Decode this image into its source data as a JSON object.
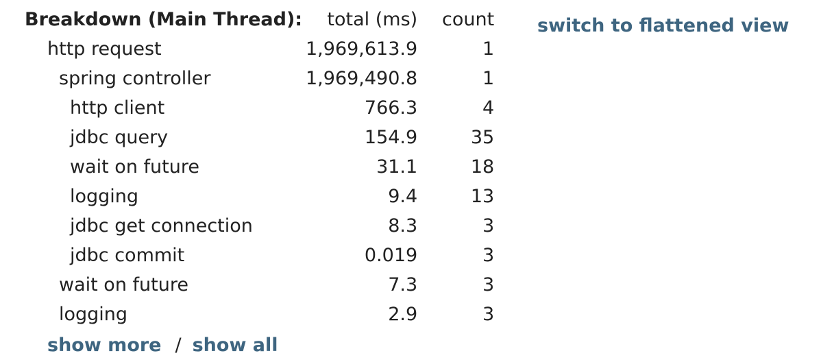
{
  "breakdown": {
    "title": "Breakdown (Main Thread):",
    "col_total": "total (ms)",
    "col_count": "count",
    "rows": [
      {
        "name": "http request",
        "total": "1,969,613.9",
        "count": "1"
      },
      {
        "name": "spring controller",
        "total": "1,969,490.8",
        "count": "1"
      },
      {
        "name": "http client",
        "total": "766.3",
        "count": "4"
      },
      {
        "name": "jdbc query",
        "total": "154.9",
        "count": "35"
      },
      {
        "name": "wait on future",
        "total": "31.1",
        "count": "18"
      },
      {
        "name": "logging",
        "total": "9.4",
        "count": "13"
      },
      {
        "name": "jdbc get connection",
        "total": "8.3",
        "count": "3"
      },
      {
        "name": "jdbc commit",
        "total": "0.019",
        "count": "3"
      },
      {
        "name": "wait on future",
        "total": "7.3",
        "count": "3"
      },
      {
        "name": "logging",
        "total": "2.9",
        "count": "3"
      }
    ]
  },
  "links": {
    "show_more": "show more",
    "separator": "/",
    "show_all": "show all",
    "switch_view": "switch to flattened view"
  },
  "colors": {
    "link": "#3e6580",
    "text": "#222222"
  }
}
